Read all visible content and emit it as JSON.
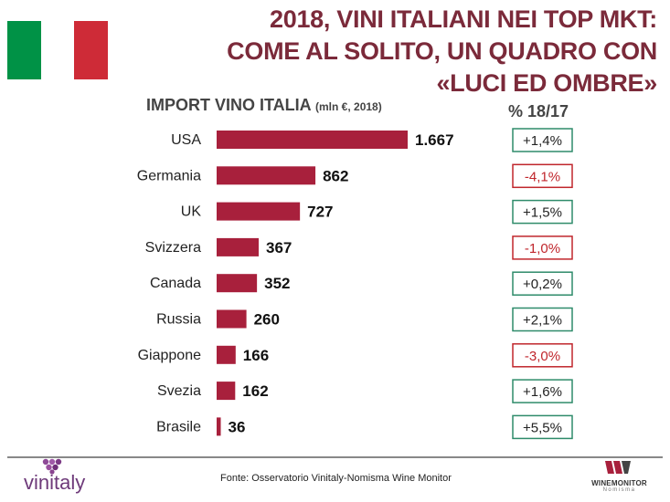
{
  "header": {
    "title_lines": [
      "2018, VINI ITALIANI NEI TOP MKT:",
      "COME AL SOLITO, UN QUADRO CON",
      "«LUCI ED OMBRE»"
    ]
  },
  "colors": {
    "title": "#7b2a3a",
    "bar": "#a8203c",
    "positive": "#2e8b6a",
    "negative": "#c0262c",
    "flag_green": "#009246",
    "flag_white": "#ffffff",
    "flag_red": "#ce2b37"
  },
  "chart_data": {
    "type": "bar",
    "orientation": "horizontal",
    "title": "IMPORT VINO ITALIA",
    "subtitle": "(mln €, 2018)",
    "categories": [
      "USA",
      "Germania",
      "UK",
      "Svizzera",
      "Canada",
      "Russia",
      "Giappone",
      "Svezia",
      "Brasile"
    ],
    "values": [
      1667,
      862,
      727,
      367,
      352,
      260,
      166,
      162,
      36
    ],
    "value_labels": [
      "1.667",
      "862",
      "727",
      "367",
      "352",
      "260",
      "166",
      "162",
      "36"
    ],
    "change_header": "% 18/17",
    "changes": [
      "+1,4%",
      "-4,1%",
      "+1,5%",
      "-1,0%",
      "+0,2%",
      "+2,1%",
      "-3,0%",
      "+1,6%",
      "+5,5%"
    ],
    "change_sign": [
      "positive",
      "negative",
      "positive",
      "negative",
      "positive",
      "positive",
      "negative",
      "positive",
      "positive"
    ],
    "xlim": [
      0,
      1667
    ],
    "grid": false
  },
  "footer": {
    "source": "Fonte: Osservatorio Vinitaly-Nomisma Wine Monitor",
    "logo_left": "vinitaly",
    "logo_right_main": "WINEMONITOR",
    "logo_right_sub": "Nomisma"
  }
}
